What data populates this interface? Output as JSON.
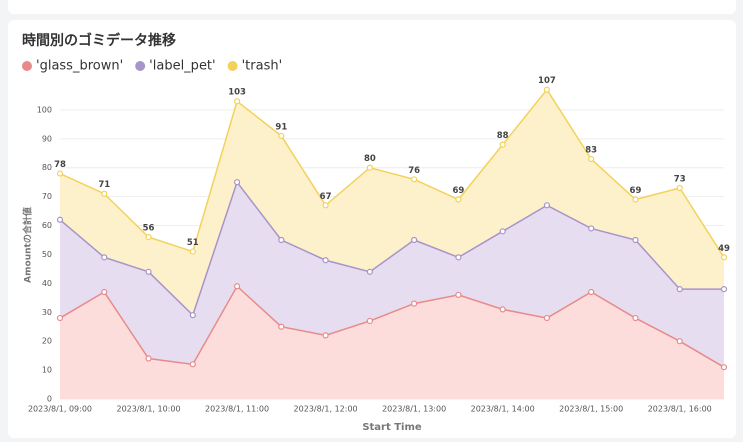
{
  "chart_data": {
    "type": "stacked_area",
    "title": "時間別のゴミデータ推移",
    "x_label": "Start Time",
    "y_label": "Amountの合計値",
    "categories": [
      "2023/8/1, 09:00",
      null,
      "2023/8/1, 10:00",
      null,
      "2023/8/1, 11:00",
      null,
      "2023/8/1, 12:00",
      null,
      "2023/8/1, 13:00",
      null,
      "2023/8/1, 14:00",
      null,
      "2023/8/1, 15:00",
      null,
      "2023/8/1, 16:00",
      null
    ],
    "series": [
      {
        "name": "'glass_brown'",
        "color": "#e88a8a",
        "fill": "#fddcdc",
        "values": [
          28,
          37,
          14,
          12,
          39,
          25,
          22,
          27,
          33,
          36,
          31,
          28,
          37,
          28,
          20,
          11
        ]
      },
      {
        "name": "'label_pet'",
        "color": "#a894c8",
        "fill": "#e7ddf0",
        "values": [
          34,
          12,
          30,
          17,
          36,
          30,
          26,
          17,
          22,
          13,
          27,
          39,
          22,
          27,
          18,
          27
        ]
      },
      {
        "name": "'trash'",
        "color": "#f3d25a",
        "fill": "#fdf1cb",
        "values": [
          16,
          22,
          12,
          22,
          28,
          36,
          19,
          36,
          21,
          20,
          30,
          40,
          24,
          14,
          35,
          11
        ]
      }
    ],
    "stack_totals": [
      78,
      71,
      56,
      51,
      103,
      91,
      67,
      80,
      76,
      69,
      88,
      107,
      83,
      69,
      73,
      49
    ],
    "ylim": [
      0,
      110
    ],
    "yticks": [
      0,
      10,
      20,
      30,
      40,
      50,
      60,
      70,
      80,
      90,
      100
    ],
    "grid": true,
    "legend": "top-left"
  }
}
